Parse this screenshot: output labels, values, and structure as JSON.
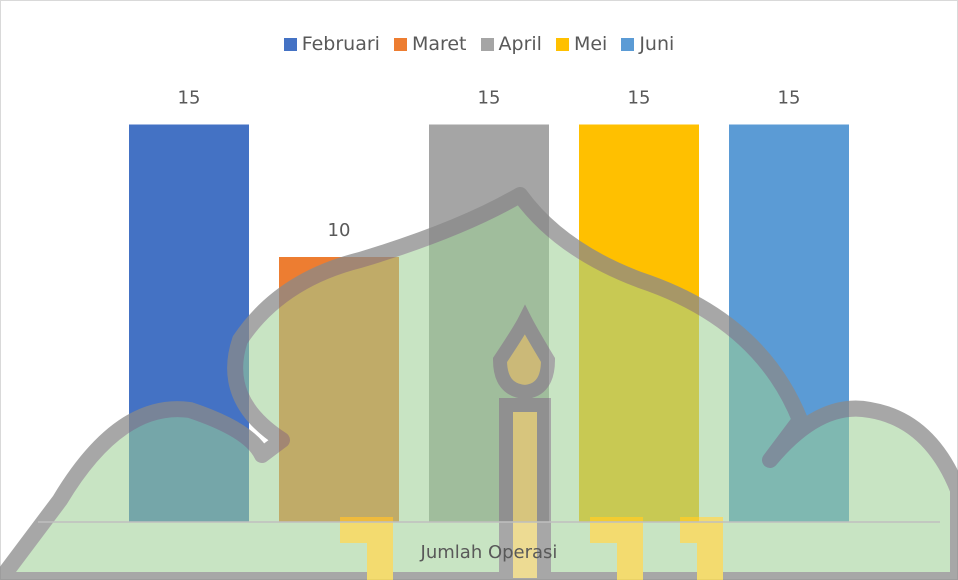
{
  "chart_data": {
    "type": "bar",
    "categories": [
      "Jumlah Operasi"
    ],
    "series": [
      {
        "name": "Februari",
        "color": "#4472c4",
        "values": [
          15
        ]
      },
      {
        "name": "Maret",
        "color": "#ed7d31",
        "values": [
          10
        ]
      },
      {
        "name": "April",
        "color": "#a5a5a5",
        "values": [
          15
        ]
      },
      {
        "name": "Mei",
        "color": "#ffc000",
        "values": [
          15
        ]
      },
      {
        "name": "Juni",
        "color": "#5b9bd5",
        "values": [
          15
        ]
      }
    ],
    "ylim": [
      0,
      16
    ],
    "legend": "top"
  }
}
